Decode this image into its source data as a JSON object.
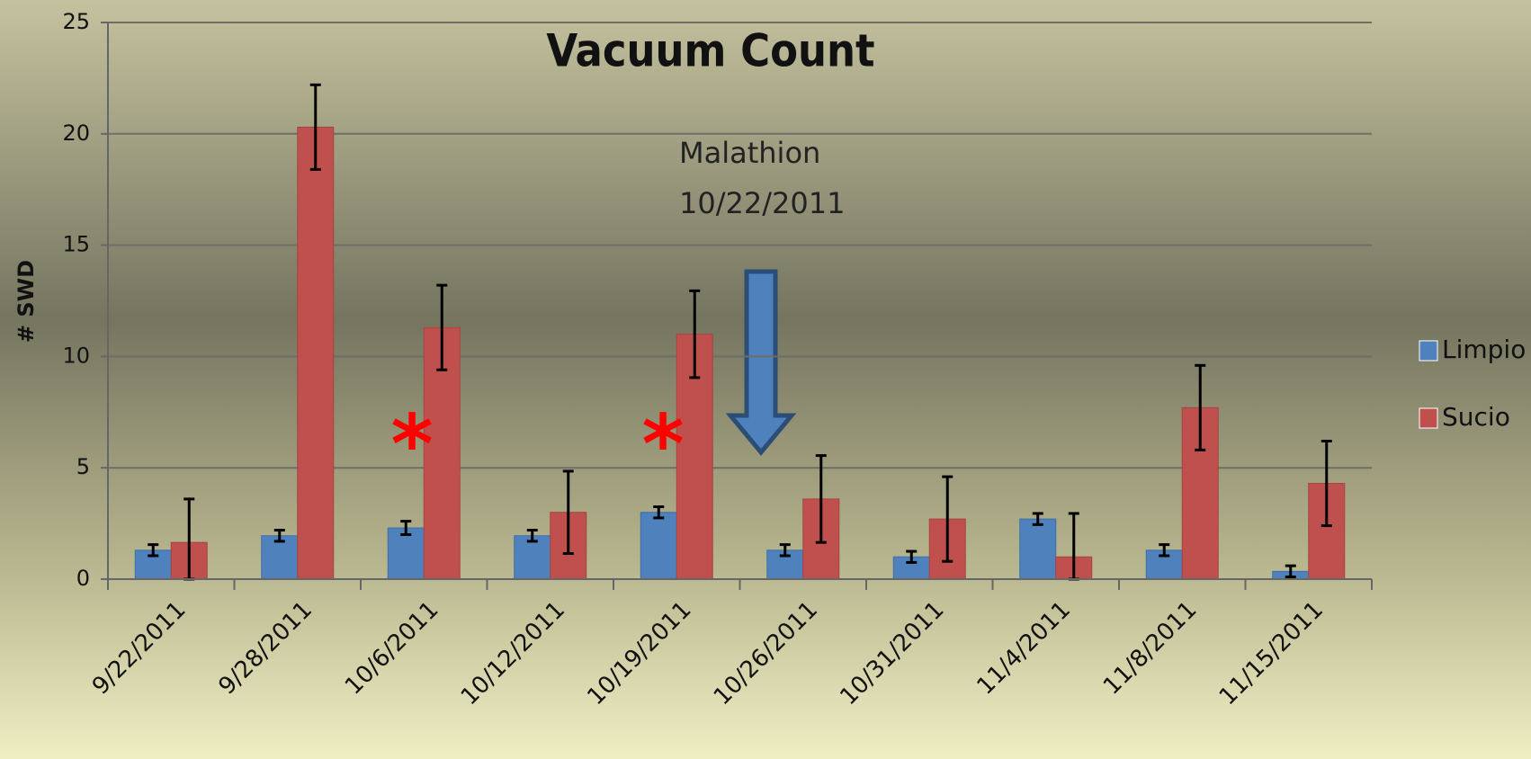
{
  "chart_data": {
    "type": "bar",
    "title": "Vacuum Count",
    "y_label": "# SWD",
    "categories": [
      "9/22/2011",
      "9/28/2011",
      "10/6/2011",
      "10/12/2011",
      "10/19/2011",
      "10/26/2011",
      "10/31/2011",
      "11/4/2011",
      "11/8/2011",
      "11/15/2011"
    ],
    "series": [
      {
        "name": "Limpio",
        "color": "#4f81bd",
        "values": [
          1.3,
          1.95,
          2.3,
          1.95,
          3.0,
          1.3,
          1.0,
          2.7,
          1.3,
          0.35
        ],
        "errors": [
          0.25,
          0.25,
          0.3,
          0.25,
          0.25,
          0.25,
          0.25,
          0.25,
          0.25,
          0.25
        ]
      },
      {
        "name": "Sucio",
        "color": "#c0504d",
        "values": [
          1.65,
          20.3,
          11.3,
          3.0,
          11.0,
          3.6,
          2.7,
          1.0,
          7.7,
          4.3
        ],
        "errors": [
          1.95,
          1.9,
          1.9,
          1.85,
          1.95,
          1.95,
          1.9,
          1.95,
          1.9,
          1.9
        ]
      }
    ],
    "annotations": [
      "Malathion",
      "10/22/2011"
    ],
    "asterisks": [
      "*",
      "*"
    ],
    "ylim": [
      0,
      25
    ],
    "yticks": [
      0,
      5,
      10,
      15,
      20,
      25
    ],
    "grid": true,
    "legend": "right"
  }
}
